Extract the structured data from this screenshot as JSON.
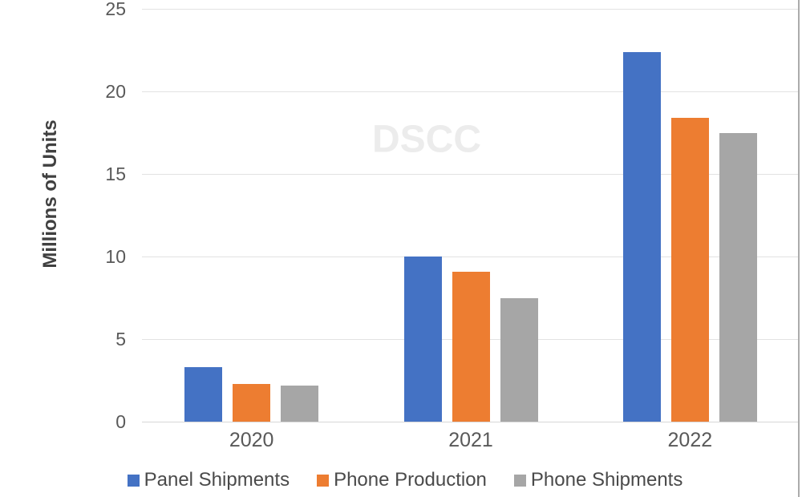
{
  "chart_data": {
    "type": "bar",
    "title": "",
    "ylabel": "Millions of Units",
    "xlabel": "",
    "categories": [
      "2020",
      "2021",
      "2022"
    ],
    "series": [
      {
        "name": "Panel Shipments",
        "color": "#4472C4",
        "values": [
          3.3,
          10.0,
          22.4
        ]
      },
      {
        "name": "Phone Production",
        "color": "#ED7D31",
        "values": [
          2.3,
          9.1,
          18.4
        ]
      },
      {
        "name": "Phone Shipments",
        "color": "#A6A6A6",
        "values": [
          2.2,
          7.5,
          17.5
        ]
      }
    ],
    "ylim": [
      0,
      25
    ],
    "yticks": [
      0,
      5,
      10,
      15,
      20,
      25
    ],
    "grid": true,
    "legend_position": "bottom",
    "watermark": "DSCC"
  },
  "appearance": {
    "background": "#FFFFFF",
    "grid_color": "#E2E2E2",
    "axis_line_color": "#D6D6D6",
    "tick_label_color": "#595959",
    "axis_title_color": "#404040",
    "legend_text_color": "#4A4A4A",
    "watermark_color": "#ECECEC",
    "right_border_color": "#ABABAB"
  }
}
